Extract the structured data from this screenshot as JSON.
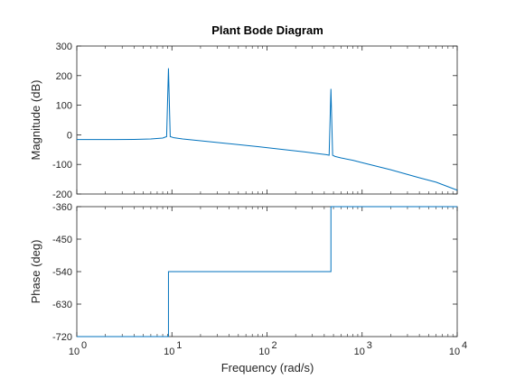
{
  "colors": {
    "line": "#0072BD",
    "axes": "#262626",
    "background": "#ffffff"
  },
  "chart_data": [
    {
      "type": "line",
      "panel": "magnitude",
      "title": "Plant Bode Diagram",
      "xlabel": "",
      "ylabel": "Magnitude (dB)",
      "xscale": "log",
      "xlim": [
        1,
        10000
      ],
      "ylim": [
        -200,
        300
      ],
      "yticks": [
        -200,
        -100,
        0,
        100,
        200,
        300
      ],
      "ytick_labels": [
        "-200",
        "-100",
        "0",
        "100",
        "200",
        "300"
      ],
      "grid": false,
      "resonances": [
        {
          "omega": 9.2,
          "peak": 225
        },
        {
          "omega": 470,
          "peak": 155
        }
      ],
      "series": [
        {
          "x": [
            1,
            2,
            4,
            6,
            8,
            8.8,
            9.2,
            9.6,
            10.5,
            13,
            20,
            40,
            80,
            150,
            250,
            350,
            420,
            450,
            470,
            490,
            520,
            600,
            800,
            1000,
            2000,
            4000,
            6000,
            10000
          ],
          "y": [
            -16,
            -16,
            -15.5,
            -14,
            -11,
            -6,
            225,
            -6,
            -10,
            -14,
            -20,
            -30,
            -40,
            -50,
            -58,
            -64,
            -67,
            -69,
            155,
            -69,
            -73,
            -78,
            -86,
            -94,
            -118,
            -145,
            -160,
            -187
          ]
        }
      ]
    },
    {
      "type": "line",
      "panel": "phase",
      "title": "",
      "xlabel": "Frequency  (rad/s)",
      "ylabel": "Phase (deg)",
      "xscale": "log",
      "xlim": [
        1,
        10000
      ],
      "xticks": [
        1,
        10,
        100,
        1000,
        10000
      ],
      "xtick_labels": [
        {
          "base": "10",
          "exp": "0"
        },
        {
          "base": "10",
          "exp": "1"
        },
        {
          "base": "10",
          "exp": "2"
        },
        {
          "base": "10",
          "exp": "3"
        },
        {
          "base": "10",
          "exp": "4"
        }
      ],
      "ylim": [
        -720,
        -360
      ],
      "yticks": [
        -720,
        -630,
        -540,
        -450,
        -360
      ],
      "ytick_labels": [
        "-720",
        "-630",
        "-540",
        "-450",
        "-360"
      ],
      "grid": false,
      "series": [
        {
          "x": [
            1,
            9.2,
            9.2,
            470,
            470,
            10000
          ],
          "y": [
            -720,
            -720,
            -540,
            -540,
            -360,
            -360
          ]
        }
      ]
    }
  ]
}
